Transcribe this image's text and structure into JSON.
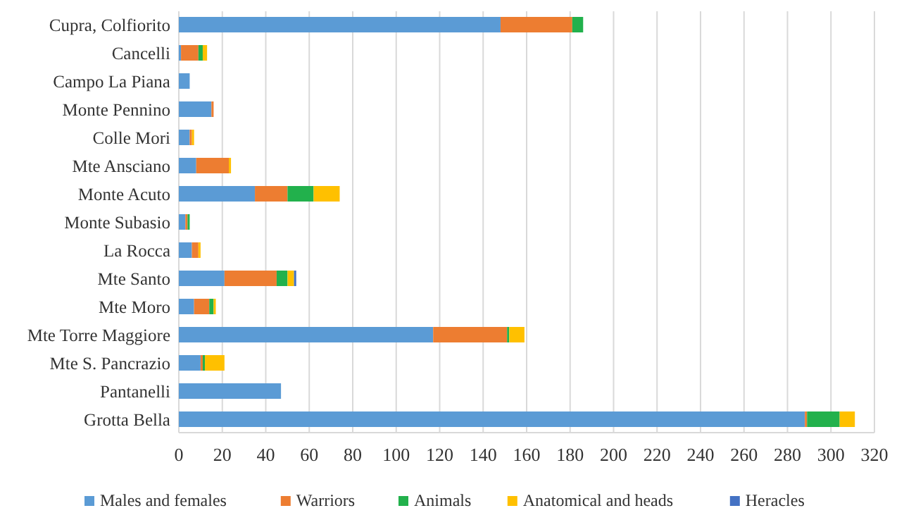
{
  "chart_data": {
    "type": "bar",
    "orientation": "horizontal",
    "stacked": true,
    "categories": [
      "Cupra, Colfiorito",
      "Cancelli",
      "Campo La Piana",
      "Monte Pennino",
      "Colle Mori",
      "Mte Ansciano",
      "Monte Acuto",
      "Monte Subasio",
      "La Rocca",
      "Mte Santo",
      "Mte Moro",
      "Mte Torre Maggiore",
      "Mte S. Pancrazio",
      "Pantanelli",
      "Grotta Bella"
    ],
    "series": [
      {
        "name": "Males and females",
        "color": "#5b9bd5",
        "values": [
          148,
          1,
          5,
          15,
          5,
          8,
          35,
          3,
          6,
          21,
          7,
          117,
          10,
          47,
          288
        ]
      },
      {
        "name": "Warriors",
        "color": "#ed7d31",
        "values": [
          33,
          8,
          0,
          1,
          1,
          15,
          15,
          1,
          3,
          24,
          7,
          34,
          1,
          0,
          1
        ]
      },
      {
        "name": "Animals",
        "color": "#22b14c",
        "values": [
          5,
          2,
          0,
          0,
          0,
          0,
          12,
          1,
          0,
          5,
          2,
          1,
          1,
          0,
          15
        ]
      },
      {
        "name": "Anatomical and heads",
        "color": "#ffc000",
        "values": [
          0,
          2,
          0,
          0,
          1,
          1,
          12,
          0,
          1,
          3,
          1,
          7,
          9,
          0,
          7
        ]
      },
      {
        "name": "Heracles",
        "color": "#4472c4",
        "values": [
          0,
          0,
          0,
          0,
          0,
          0,
          0,
          0,
          0,
          1,
          0,
          0,
          0,
          0,
          0
        ]
      }
    ],
    "xlim": [
      0,
      320
    ],
    "xticks": [
      0,
      20,
      40,
      60,
      80,
      100,
      120,
      140,
      160,
      180,
      200,
      220,
      240,
      260,
      280,
      300,
      320
    ],
    "grid": "x",
    "legend": "bottom"
  }
}
